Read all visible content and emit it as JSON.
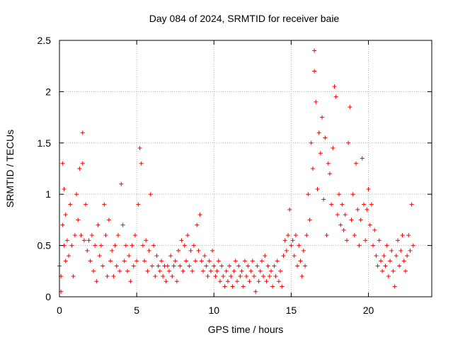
{
  "chart_data": {
    "type": "scatter",
    "title": "Day 084 of 2024, SRMTID for receiver baie",
    "xlabel": "GPS time / hours",
    "ylabel": "SRMTID / TECUs",
    "xlim": [
      0,
      24.1
    ],
    "ylim": [
      0,
      2.5
    ],
    "xticks": [
      "0",
      "5",
      "10",
      "15",
      "20"
    ],
    "yticks": [
      "0",
      "0.5",
      "1",
      "1.5",
      "2",
      "2.5"
    ],
    "grid": true,
    "marker": "+",
    "series": [
      {
        "name": "SRMTID",
        "color": "#ff0000",
        "points": [
          [
            0.0,
            0.3
          ],
          [
            0.1,
            0.05
          ],
          [
            0.1,
            0.2
          ],
          [
            0.2,
            0.7
          ],
          [
            0.2,
            1.3
          ],
          [
            0.3,
            0.5
          ],
          [
            0.3,
            1.05
          ],
          [
            0.4,
            0.35
          ],
          [
            0.4,
            0.8
          ],
          [
            0.5,
            0.55
          ],
          [
            0.6,
            0.4
          ],
          [
            0.7,
            0.9
          ],
          [
            0.8,
            0.5
          ],
          [
            0.9,
            0.2
          ],
          [
            1.0,
            0.6
          ],
          [
            1.1,
            1.0
          ],
          [
            1.2,
            0.75
          ],
          [
            1.3,
            1.25
          ],
          [
            1.4,
            0.6
          ],
          [
            1.5,
            1.6
          ],
          [
            1.5,
            1.3
          ],
          [
            1.6,
            0.55
          ],
          [
            1.7,
            0.9
          ],
          [
            1.8,
            0.45
          ],
          [
            1.9,
            0.55
          ],
          [
            2.0,
            0.35
          ],
          [
            2.1,
            0.6
          ],
          [
            2.2,
            0.25
          ],
          [
            2.3,
            0.5
          ],
          [
            2.4,
            0.15
          ],
          [
            2.5,
            0.7
          ],
          [
            2.6,
            0.4
          ],
          [
            2.7,
            0.5
          ],
          [
            2.8,
            0.3
          ],
          [
            2.9,
            0.9
          ],
          [
            3.0,
            0.6
          ],
          [
            3.1,
            0.2
          ],
          [
            3.2,
            0.75
          ],
          [
            3.3,
            0.35
          ],
          [
            3.4,
            0.45
          ],
          [
            3.5,
            0.2
          ],
          [
            3.6,
            0.5
          ],
          [
            3.7,
            0.3
          ],
          [
            3.8,
            0.6
          ],
          [
            3.9,
            0.25
          ],
          [
            4.0,
            1.1
          ],
          [
            4.1,
            0.7
          ],
          [
            4.2,
            0.35
          ],
          [
            4.3,
            0.5
          ],
          [
            4.4,
            0.25
          ],
          [
            4.5,
            0.4
          ],
          [
            4.6,
            0.15
          ],
          [
            4.7,
            0.5
          ],
          [
            4.8,
            0.3
          ],
          [
            4.9,
            0.6
          ],
          [
            5.0,
            0.35
          ],
          [
            5.1,
            0.9
          ],
          [
            5.2,
            1.45
          ],
          [
            5.3,
            1.3
          ],
          [
            5.4,
            0.5
          ],
          [
            5.5,
            0.35
          ],
          [
            5.6,
            0.55
          ],
          [
            5.7,
            0.25
          ],
          [
            5.8,
            0.45
          ],
          [
            5.9,
            1.0
          ],
          [
            6.0,
            0.3
          ],
          [
            6.1,
            0.5
          ],
          [
            6.2,
            0.2
          ],
          [
            6.3,
            0.4
          ],
          [
            6.4,
            0.3
          ],
          [
            6.5,
            0.25
          ],
          [
            6.6,
            0.35
          ],
          [
            6.7,
            0.2
          ],
          [
            6.8,
            0.3
          ],
          [
            6.9,
            0.15
          ],
          [
            7.0,
            0.3
          ],
          [
            7.1,
            0.25
          ],
          [
            7.2,
            0.4
          ],
          [
            7.3,
            0.2
          ],
          [
            7.4,
            0.3
          ],
          [
            7.5,
            0.35
          ],
          [
            7.6,
            0.15
          ],
          [
            7.7,
            0.45
          ],
          [
            7.8,
            0.3
          ],
          [
            7.9,
            0.55
          ],
          [
            8.0,
            0.25
          ],
          [
            8.1,
            0.5
          ],
          [
            8.2,
            0.35
          ],
          [
            8.3,
            0.6
          ],
          [
            8.4,
            0.3
          ],
          [
            8.5,
            0.45
          ],
          [
            8.6,
            0.25
          ],
          [
            8.7,
            0.5
          ],
          [
            8.8,
            0.35
          ],
          [
            8.9,
            0.7
          ],
          [
            9.0,
            0.45
          ],
          [
            9.1,
            0.8
          ],
          [
            9.2,
            0.35
          ],
          [
            9.3,
            0.25
          ],
          [
            9.4,
            0.4
          ],
          [
            9.5,
            0.3
          ],
          [
            9.6,
            0.2
          ],
          [
            9.7,
            0.35
          ],
          [
            9.8,
            0.25
          ],
          [
            9.9,
            0.45
          ],
          [
            10.0,
            0.3
          ],
          [
            10.1,
            0.2
          ],
          [
            10.2,
            0.25
          ],
          [
            10.3,
            0.35
          ],
          [
            10.4,
            0.15
          ],
          [
            10.5,
            0.3
          ],
          [
            10.6,
            0.2
          ],
          [
            10.7,
            0.1
          ],
          [
            10.8,
            0.25
          ],
          [
            10.9,
            0.15
          ],
          [
            11.0,
            0.3
          ],
          [
            11.1,
            0.2
          ],
          [
            11.2,
            0.1
          ],
          [
            11.3,
            0.25
          ],
          [
            11.4,
            0.35
          ],
          [
            11.5,
            0.15
          ],
          [
            11.6,
            0.3
          ],
          [
            11.7,
            0.2
          ],
          [
            11.8,
            0.25
          ],
          [
            11.9,
            0.1
          ],
          [
            12.0,
            0.35
          ],
          [
            12.1,
            0.2
          ],
          [
            12.2,
            0.3
          ],
          [
            12.3,
            0.15
          ],
          [
            12.4,
            0.25
          ],
          [
            12.5,
            0.35
          ],
          [
            12.6,
            0.2
          ],
          [
            12.7,
            0.05
          ],
          [
            12.8,
            0.3
          ],
          [
            12.9,
            0.15
          ],
          [
            13.0,
            0.25
          ],
          [
            13.1,
            0.35
          ],
          [
            13.2,
            0.2
          ],
          [
            13.3,
            0.4
          ],
          [
            13.4,
            0.15
          ],
          [
            13.5,
            0.3
          ],
          [
            13.6,
            0.2
          ],
          [
            13.7,
            0.25
          ],
          [
            13.8,
            0.1
          ],
          [
            13.9,
            0.3
          ],
          [
            14.0,
            0.2
          ],
          [
            14.1,
            0.35
          ],
          [
            14.2,
            0.15
          ],
          [
            14.3,
            0.25
          ],
          [
            14.4,
            0.1
          ],
          [
            14.5,
            0.4
          ],
          [
            14.6,
            0.55
          ],
          [
            14.7,
            0.45
          ],
          [
            14.8,
            0.6
          ],
          [
            14.9,
            0.85
          ],
          [
            15.0,
            0.5
          ],
          [
            15.1,
            0.55
          ],
          [
            15.2,
            0.4
          ],
          [
            15.3,
            0.6
          ],
          [
            15.4,
            0.3
          ],
          [
            15.5,
            0.5
          ],
          [
            15.6,
            0.35
          ],
          [
            15.7,
            0.2
          ],
          [
            15.8,
            0.45
          ],
          [
            15.9,
            0.3
          ],
          [
            16.0,
            0.6
          ],
          [
            16.1,
            1.0
          ],
          [
            16.2,
            0.75
          ],
          [
            16.3,
            1.5
          ],
          [
            16.4,
            1.25
          ],
          [
            16.5,
            2.4
          ],
          [
            16.5,
            2.2
          ],
          [
            16.6,
            1.9
          ],
          [
            16.7,
            1.05
          ],
          [
            16.8,
            1.6
          ],
          [
            16.9,
            1.4
          ],
          [
            17.0,
            1.75
          ],
          [
            17.1,
            0.95
          ],
          [
            17.2,
            1.55
          ],
          [
            17.3,
            0.6
          ],
          [
            17.4,
            1.3
          ],
          [
            17.5,
            1.2
          ],
          [
            17.6,
            0.9
          ],
          [
            17.7,
            1.45
          ],
          [
            17.8,
            2.05
          ],
          [
            17.9,
            1.95
          ],
          [
            18.0,
            0.8
          ],
          [
            18.1,
            1.0
          ],
          [
            18.2,
            0.7
          ],
          [
            18.3,
            0.9
          ],
          [
            18.4,
            0.65
          ],
          [
            18.5,
            0.8
          ],
          [
            18.6,
            0.55
          ],
          [
            18.7,
            1.5
          ],
          [
            18.8,
            1.85
          ],
          [
            18.9,
            0.75
          ],
          [
            19.0,
            1.0
          ],
          [
            19.1,
            0.6
          ],
          [
            19.2,
            1.3
          ],
          [
            19.3,
            0.85
          ],
          [
            19.4,
            0.5
          ],
          [
            19.5,
            0.75
          ],
          [
            19.6,
            1.35
          ],
          [
            19.7,
            0.9
          ],
          [
            19.8,
            0.55
          ],
          [
            19.9,
            0.85
          ],
          [
            20.0,
            1.05
          ],
          [
            20.1,
            0.7
          ],
          [
            20.2,
            0.9
          ],
          [
            20.3,
            0.5
          ],
          [
            20.4,
            0.65
          ],
          [
            20.5,
            0.4
          ],
          [
            20.6,
            0.3
          ],
          [
            20.7,
            0.55
          ],
          [
            20.8,
            0.35
          ],
          [
            20.9,
            0.25
          ],
          [
            21.0,
            0.4
          ],
          [
            21.1,
            0.3
          ],
          [
            21.2,
            0.5
          ],
          [
            21.3,
            0.2
          ],
          [
            21.4,
            0.35
          ],
          [
            21.5,
            0.45
          ],
          [
            21.6,
            0.25
          ],
          [
            21.7,
            0.1
          ],
          [
            21.8,
            0.4
          ],
          [
            21.9,
            0.55
          ],
          [
            22.0,
            0.3
          ],
          [
            22.1,
            0.45
          ],
          [
            22.2,
            0.6
          ],
          [
            22.3,
            0.35
          ],
          [
            22.4,
            0.25
          ],
          [
            22.5,
            0.4
          ],
          [
            22.6,
            0.6
          ],
          [
            22.7,
            0.45
          ],
          [
            22.8,
            0.9
          ],
          [
            22.9,
            0.5
          ]
        ]
      }
    ]
  }
}
